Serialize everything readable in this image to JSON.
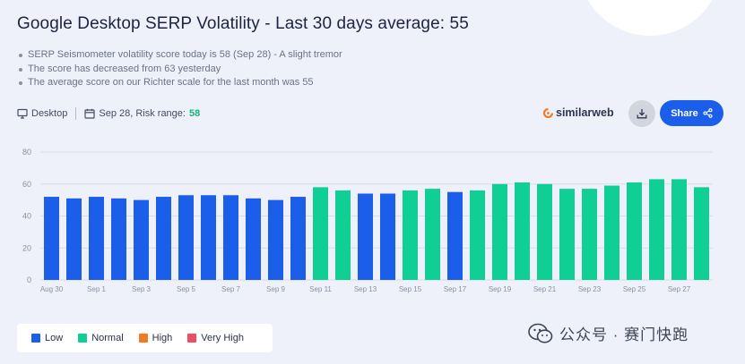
{
  "title": "Google Desktop SERP Volatility - Last 30 days average: 55",
  "bullets": [
    "SERP Seismometer volatility score today is 58 (Sep 28) - A slight tremor",
    "The score has decreased from 63 yesterday",
    "The average score on our Richter scale for the last month was 55"
  ],
  "meta": {
    "device_label": "Desktop",
    "date_risk_label": "Sep 28, Risk range:",
    "risk_value": "58"
  },
  "brand": {
    "name": "similarweb"
  },
  "share": {
    "label": "Share"
  },
  "icons": {
    "device": "desktop-icon",
    "calendar": "calendar-icon",
    "download": "download-icon",
    "share": "share-icon",
    "brand": "similarweb-logo-icon",
    "watermark": "wechat-icon"
  },
  "colors": {
    "Low": "#1a5eea",
    "Normal": "#0fcf95",
    "High": "#f47a22",
    "Very High": "#f04d5e",
    "share_button": "#1a5eea",
    "risk_value": "#16b67a"
  },
  "legend": [
    {
      "label": "Low",
      "key": "Low"
    },
    {
      "label": "Normal",
      "key": "Normal"
    },
    {
      "label": "High",
      "key": "High"
    },
    {
      "label": "Very High",
      "key": "Very High"
    }
  ],
  "watermark": {
    "text": "公众号 · 赛门快跑"
  },
  "chart_data": {
    "type": "bar",
    "title": "Google Desktop SERP Volatility - Last 30 days average: 55",
    "xlabel": "",
    "ylabel": "",
    "ylim": [
      0,
      80
    ],
    "yticks": [
      0,
      20,
      40,
      60,
      80
    ],
    "grid": "horizontal",
    "legend_position": "bottom-left",
    "categories": [
      "Aug 30",
      "Aug 31",
      "Sep 1",
      "Sep 2",
      "Sep 3",
      "Sep 4",
      "Sep 5",
      "Sep 6",
      "Sep 7",
      "Sep 8",
      "Sep 9",
      "Sep 10",
      "Sep 11",
      "Sep 12",
      "Sep 13",
      "Sep 14",
      "Sep 15",
      "Sep 16",
      "Sep 17",
      "Sep 18",
      "Sep 19",
      "Sep 20",
      "Sep 21",
      "Sep 22",
      "Sep 23",
      "Sep 24",
      "Sep 25",
      "Sep 26",
      "Sep 27",
      "Sep 28"
    ],
    "tick_labels": [
      "Aug 30",
      "",
      "Sep 1",
      "",
      "Sep 3",
      "",
      "Sep 5",
      "",
      "Sep 7",
      "",
      "Sep 9",
      "",
      "Sep 11",
      "",
      "Sep 13",
      "",
      "Sep 15",
      "",
      "Sep 17",
      "",
      "Sep 19",
      "",
      "Sep 21",
      "",
      "Sep 23",
      "",
      "Sep 25",
      "",
      "Sep 27",
      ""
    ],
    "values": [
      52,
      51,
      52,
      51,
      50,
      52,
      53,
      53,
      53,
      51,
      50,
      52,
      58,
      56,
      54,
      54,
      56,
      57,
      55,
      56,
      60,
      61,
      60,
      57,
      57,
      59,
      61,
      63,
      63,
      58
    ],
    "levels": [
      "Low",
      "Low",
      "Low",
      "Low",
      "Low",
      "Low",
      "Low",
      "Low",
      "Low",
      "Low",
      "Low",
      "Low",
      "Normal",
      "Normal",
      "Low",
      "Low",
      "Normal",
      "Normal",
      "Low",
      "Normal",
      "Normal",
      "Normal",
      "Normal",
      "Normal",
      "Normal",
      "Normal",
      "Normal",
      "Normal",
      "Normal",
      "Normal"
    ]
  }
}
